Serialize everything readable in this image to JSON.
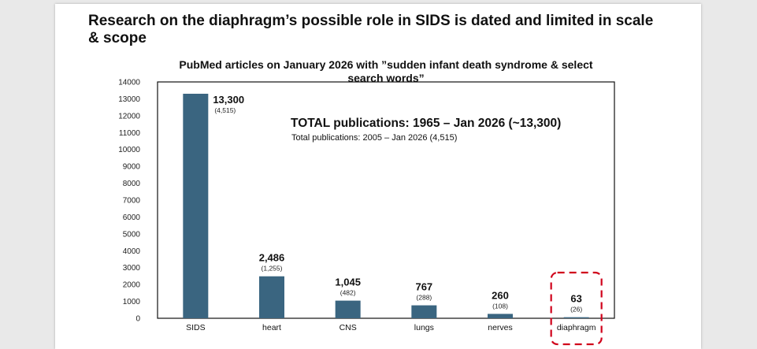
{
  "headline": "Research on the diaphragm’s possible role in SIDS is dated and limited in scale & scope",
  "chart_data": {
    "type": "bar",
    "title": "PubMed articles on January 2026 with ”sudden infant death syndrome & select search words”",
    "xlabel": "",
    "ylabel": "",
    "categories": [
      "SIDS",
      "heart",
      "CNS",
      "lungs",
      "nerves",
      "diaphragm"
    ],
    "series": [
      {
        "values": [
          13300,
          2486,
          1045,
          767,
          260,
          63
        ]
      }
    ],
    "value_labels": [
      "13,300",
      "2,486",
      "1,045",
      "767",
      "260",
      "63"
    ],
    "secondary_labels": [
      "(4,515)",
      "(1,255)",
      "(482)",
      "(288)",
      "(108)",
      "(26)"
    ],
    "ylim": [
      0,
      14000
    ],
    "yticks": [
      0,
      1000,
      2000,
      3000,
      4000,
      5000,
      6000,
      7000,
      8000,
      9000,
      10000,
      11000,
      12000,
      13000,
      14000
    ],
    "grid": false,
    "legend": "none",
    "bar_color": "#3a6580",
    "highlight_color": "#d0021b",
    "highlight_category": "diaphragm",
    "annotations": [
      "TOTAL publications: 1965 – Jan 2026 (~13,300)",
      "Total publications: 2005 – Jan 2026 (4,515)"
    ]
  }
}
